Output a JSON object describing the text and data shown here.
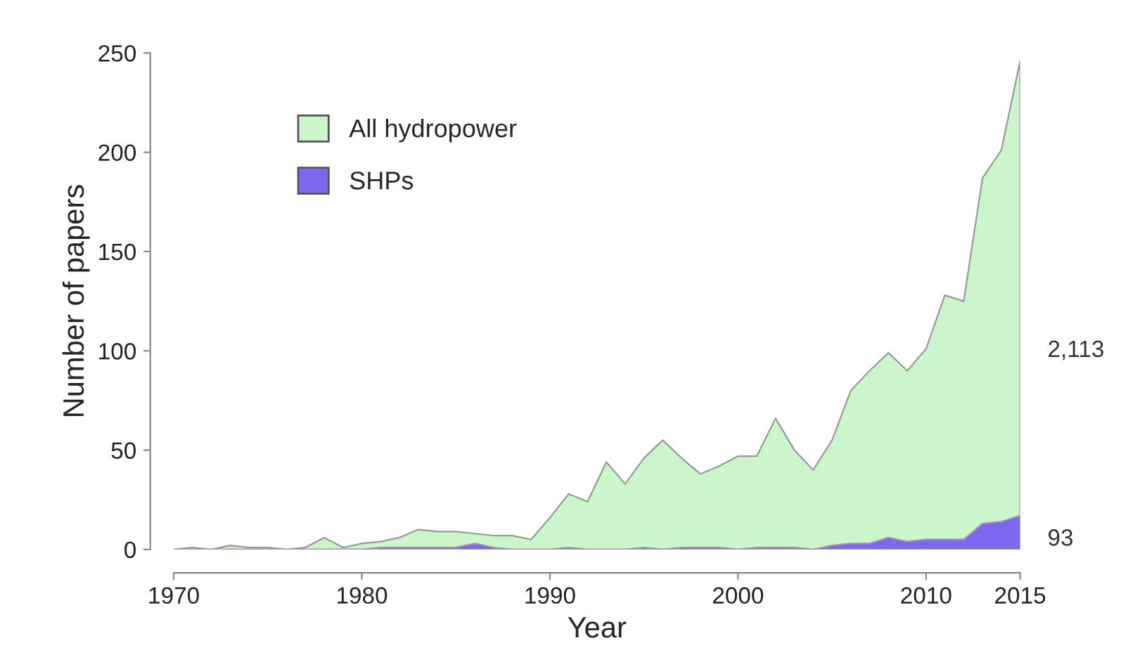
{
  "chart_data": {
    "type": "area",
    "xlabel": "Year",
    "ylabel": "Number of papers",
    "x": [
      1970,
      1971,
      1972,
      1973,
      1974,
      1975,
      1976,
      1977,
      1978,
      1979,
      1980,
      1981,
      1982,
      1983,
      1984,
      1985,
      1986,
      1987,
      1988,
      1989,
      1990,
      1991,
      1992,
      1993,
      1994,
      1995,
      1996,
      1997,
      1998,
      1999,
      2000,
      2001,
      2002,
      2003,
      2004,
      2005,
      2006,
      2007,
      2008,
      2009,
      2010,
      2011,
      2012,
      2013,
      2014,
      2015
    ],
    "series": [
      {
        "name": "All hydropower",
        "color": "#ccf5cc",
        "values": [
          0,
          1,
          0,
          2,
          1,
          1,
          0,
          1,
          6,
          1,
          3,
          4,
          6,
          10,
          9,
          9,
          8,
          7,
          7,
          5,
          16,
          28,
          24,
          44,
          33,
          46,
          55,
          46,
          38,
          42,
          47,
          47,
          66,
          50,
          40,
          55,
          80,
          90,
          99,
          90,
          101,
          128,
          125,
          187,
          201,
          246
        ]
      },
      {
        "name": "SHPs",
        "color": "#7b68ee",
        "values": [
          0,
          0,
          0,
          0,
          0,
          0,
          0,
          0,
          0,
          0,
          0,
          1,
          1,
          1,
          1,
          1,
          3,
          1,
          0,
          0,
          0,
          1,
          0,
          0,
          0,
          1,
          0,
          1,
          1,
          1,
          0,
          1,
          1,
          1,
          0,
          2,
          3,
          3,
          6,
          4,
          5,
          5,
          5,
          13,
          14,
          17
        ]
      }
    ],
    "xlim": [
      1970,
      2015
    ],
    "xticks": [
      1970,
      1980,
      1990,
      2000,
      2010,
      2015
    ],
    "ylim": [
      0,
      250
    ],
    "yticks": [
      0,
      50,
      100,
      150,
      200,
      250
    ],
    "annotations": [
      {
        "text": "2,113",
        "x": 2015,
        "y": 100
      },
      {
        "text": "93",
        "x": 2015,
        "y": 5
      }
    ],
    "legend": "top left",
    "grid": false
  }
}
